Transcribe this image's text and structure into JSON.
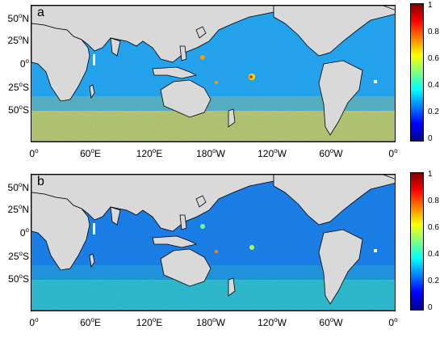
{
  "panels": [
    {
      "id": "a",
      "label": "a",
      "base_color": "#2aa8f0",
      "southern_band_color": "#e8d24a",
      "southern_band_opacity": 0.85,
      "hotspot_colors": [
        "#ffdd00",
        "#ff3000",
        "#ff9900"
      ]
    },
    {
      "id": "b",
      "label": "b",
      "base_color": "#1f7ee8",
      "southern_band_color": "#3dd6c2",
      "southern_band_opacity": 0.75,
      "hotspot_colors": [
        "#a8ff55",
        "#ff8800",
        "#66ff99"
      ]
    }
  ],
  "lat_labels": [
    {
      "deg": "50",
      "dir": "N"
    },
    {
      "deg": "25",
      "dir": "N"
    },
    {
      "deg": "0",
      "dir": ""
    },
    {
      "deg": "25",
      "dir": "S"
    },
    {
      "deg": "50",
      "dir": "S"
    }
  ],
  "lon_labels": [
    {
      "deg": "0",
      "dir": ""
    },
    {
      "deg": "60",
      "dir": "E"
    },
    {
      "deg": "120",
      "dir": "E"
    },
    {
      "deg": "180",
      "dir": "W"
    },
    {
      "deg": "120",
      "dir": "W"
    },
    {
      "deg": "60",
      "dir": "W"
    },
    {
      "deg": "0",
      "dir": ""
    }
  ],
  "colorbar": {
    "ticks": [
      "1",
      "0.8",
      "0.6",
      "0.4",
      "0.2",
      "0"
    ],
    "colormap": "jet",
    "range": [
      0,
      1
    ]
  },
  "land_color": "#d9d9d9",
  "coast_color": "#000000",
  "degree_symbol": "o"
}
